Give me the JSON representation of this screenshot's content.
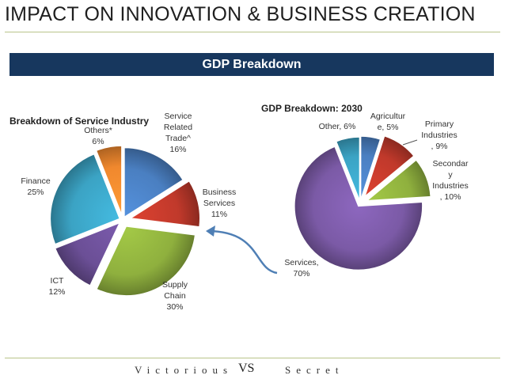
{
  "slide": {
    "title": "IMPACT ON INNOVATION & BUSINESS CREATION",
    "banner": "GDP Breakdown",
    "footer_left": "Victorious",
    "footer_mark": "VS",
    "footer_right": "Secret"
  },
  "colors": {
    "banner_bg": "#17375e",
    "rule": "#b9c48a"
  },
  "chart_data": [
    {
      "type": "pie",
      "title": "Breakdown of Service Industry",
      "slices": [
        {
          "label": "Service Related Trade^",
          "value": 16,
          "display": "Service\nRelated\nTrade^\n16%",
          "color": "#4a7fc1"
        },
        {
          "label": "Business Services",
          "value": 11,
          "display": "Business\nServices\n11%",
          "color": "#c0392b"
        },
        {
          "label": "Supply Chain",
          "value": 30,
          "display": "Supply\nChain\n30%",
          "color": "#8fb03e"
        },
        {
          "label": "ICT",
          "value": 12,
          "display": "ICT\n12%",
          "color": "#6b4f96"
        },
        {
          "label": "Finance",
          "value": 25,
          "display": "Finance\n25%",
          "color": "#3ba3c4"
        },
        {
          "label": "Others*",
          "value": 6,
          "display": "Others*\n6%",
          "color": "#f0882e"
        }
      ]
    },
    {
      "type": "pie",
      "title": "GDP Breakdown: 2030",
      "slices": [
        {
          "label": "Agriculture",
          "value": 5,
          "display": "Agricultur\ne, 5%",
          "color": "#4a7fc1"
        },
        {
          "label": "Primary Industries",
          "value": 9,
          "display": "Primary\nIndustries\n, 9%",
          "color": "#c0392b"
        },
        {
          "label": "Secondary Industries",
          "value": 10,
          "display": "Secondar\ny\nIndustries\n, 10%",
          "color": "#8fb03e"
        },
        {
          "label": "Services",
          "value": 70,
          "display": "Services,\n70%",
          "color": "#7b5aa6"
        },
        {
          "label": "Other",
          "value": 6,
          "display": "Other, 6%",
          "color": "#3ba3c4"
        }
      ]
    }
  ]
}
